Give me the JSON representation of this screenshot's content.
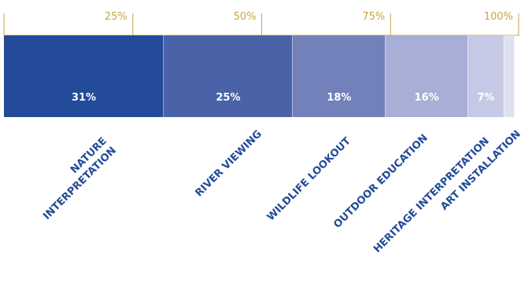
{
  "chart_data": {
    "type": "bar",
    "orientation": "horizontal-stacked-100",
    "categories": [
      "NATURE INTERPRETATION",
      "RIVER VIEWING",
      "WILDLIFE LOOKOUT",
      "OUTDOOR EDUCATION",
      "HERITAGE INTERPRETATION",
      "ART INSTALLATION"
    ],
    "category_lines": [
      [
        "NATURE",
        "INTERPRETATION"
      ],
      [
        "RIVER VIEWING"
      ],
      [
        "WILDLIFE LOOKOUT"
      ],
      [
        "OUTDOOR EDUCATION"
      ],
      [
        "HERITAGE INTERPRETATION"
      ],
      [
        "ART INSTALLATION"
      ]
    ],
    "values": [
      31,
      25,
      18,
      16,
      7,
      2
    ],
    "value_labels": [
      "31%",
      "25%",
      "18%",
      "16%",
      "7%",
      ""
    ],
    "colors": [
      "#234b9a",
      "#4a63a8",
      "#7381ba",
      "#a7afd6",
      "#c5c9e6",
      "#dfe1f1"
    ],
    "axis_ticks": [
      "25%",
      "50%",
      "75%",
      "100%"
    ],
    "axis_tick_values": [
      25,
      50,
      75,
      100
    ],
    "xlim": [
      0,
      100
    ],
    "axis_color": "#c9a53f",
    "label_color": "#234b9a",
    "title": "",
    "xlabel": "",
    "ylabel": "",
    "grid": false,
    "legend": "none"
  }
}
